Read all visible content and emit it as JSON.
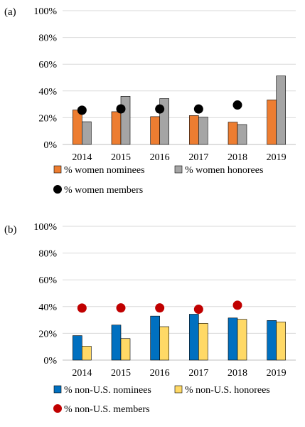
{
  "chart_data": [
    {
      "panel_label": "(a)",
      "type": "bar",
      "categories": [
        "2014",
        "2015",
        "2016",
        "2017",
        "2018",
        "2019"
      ],
      "y_ticks": [
        "0%",
        "20%",
        "40%",
        "60%",
        "80%",
        "100%"
      ],
      "ylim": [
        0,
        100
      ],
      "grid": true,
      "series": [
        {
          "name": "% women nominees",
          "kind": "bar",
          "color": "#ED7D31",
          "values": [
            25.8,
            24.5,
            20.8,
            21.6,
            16.7,
            33.3
          ]
        },
        {
          "name": "% women honorees",
          "kind": "bar",
          "color": "#A5A5A5",
          "values": [
            17.0,
            36.0,
            34.3,
            20.5,
            14.9,
            51.2
          ]
        },
        {
          "name": "% women members",
          "kind": "point",
          "color": "#000000",
          "values": [
            25.6,
            26.6,
            26.5,
            26.5,
            29.5,
            null
          ]
        }
      ],
      "legend_position": "bottom"
    },
    {
      "panel_label": "(b)",
      "type": "bar",
      "categories": [
        "2014",
        "2015",
        "2016",
        "2017",
        "2018",
        "2019"
      ],
      "y_ticks": [
        "0%",
        "20%",
        "40%",
        "60%",
        "80%",
        "100%"
      ],
      "ylim": [
        0,
        100
      ],
      "grid": true,
      "series": [
        {
          "name": "% non-U.S. nominees",
          "kind": "bar",
          "color": "#0070C0",
          "values": [
            18.3,
            26.2,
            32.9,
            34.3,
            31.5,
            29.6
          ]
        },
        {
          "name": "% non-U.S. honorees",
          "kind": "bar",
          "color": "#FFD966",
          "values": [
            10.4,
            16.1,
            25.0,
            27.5,
            30.5,
            28.5
          ]
        },
        {
          "name": "% non-U.S. members",
          "kind": "point",
          "color": "#C00000",
          "values": [
            38.9,
            39.0,
            39.0,
            38.0,
            41.0,
            null
          ]
        }
      ],
      "legend_position": "bottom"
    }
  ]
}
